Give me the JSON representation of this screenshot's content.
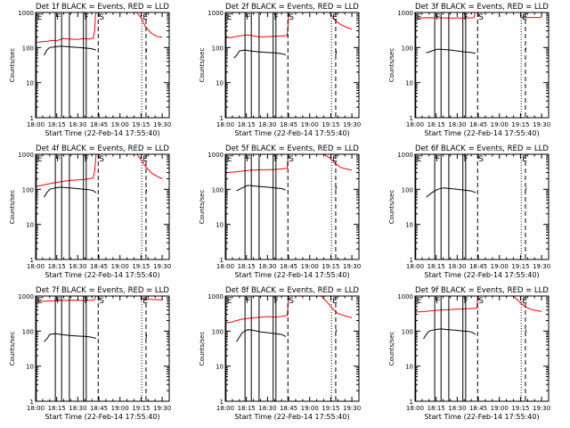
{
  "page": {
    "xaxis_label": "Start Time (22-Feb-14 17:55:40)"
  },
  "chart_data": {
    "type": "line",
    "grid": false,
    "y_scale": "log",
    "ylim": [
      1,
      1000
    ],
    "ylabel": "Counts/sec",
    "y_ticks": [
      {
        "value": 1,
        "label": "1"
      },
      {
        "value": 10,
        "label": "10"
      },
      {
        "value": 100,
        "label": "100"
      },
      {
        "value": 1000,
        "label": "1000"
      }
    ],
    "x_domain_minutes": [
      0,
      95
    ],
    "x_ticks": [
      {
        "minute": 0,
        "label": "18:00"
      },
      {
        "minute": 15,
        "label": "18:15"
      },
      {
        "minute": 30,
        "label": "18:30"
      },
      {
        "minute": 45,
        "label": "18:45"
      },
      {
        "minute": 60,
        "label": "19:00"
      },
      {
        "minute": 75,
        "label": "19:15"
      },
      {
        "minute": 90,
        "label": "19:30"
      }
    ],
    "series_names": [
      "Events",
      "LLD"
    ],
    "series_colors": {
      "Events": "#000000",
      "LLD": "#ff0000"
    },
    "markers": [
      {
        "minute": 0.5,
        "label": "E",
        "style": "solid"
      },
      {
        "minute": 14,
        "label": "F",
        "style": "solid"
      },
      {
        "minute": 18.5,
        "label": "",
        "style": "solid"
      },
      {
        "minute": 24,
        "label": "",
        "style": "solid"
      },
      {
        "minute": 34,
        "label": "F",
        "style": "solid"
      },
      {
        "minute": 36,
        "label": "",
        "style": "solid"
      },
      {
        "minute": 44.5,
        "label": "S",
        "style": "dashed"
      },
      {
        "minute": 75.5,
        "label": "E",
        "style": "dotted"
      },
      {
        "minute": 78.5,
        "label": "",
        "style": "dashed"
      }
    ],
    "panels": [
      {
        "title": "Det 1f BLACK = Events, RED = LLD",
        "events": [
          [
            6,
            60
          ],
          [
            8,
            85
          ],
          [
            10,
            100
          ],
          [
            14,
            105
          ],
          [
            18,
            110
          ],
          [
            24,
            105
          ],
          [
            30,
            100
          ],
          [
            34,
            98
          ],
          [
            38,
            95
          ],
          [
            40,
            92
          ],
          [
            43,
            85
          ]
        ],
        "events_tail": [
          [
            78.5,
            70
          ],
          [
            79,
            90
          ]
        ],
        "lld": [
          [
            0,
            140
          ],
          [
            3,
            145
          ],
          [
            8,
            150
          ],
          [
            12,
            160
          ],
          [
            15,
            155
          ],
          [
            19,
            180
          ],
          [
            24,
            175
          ],
          [
            30,
            170
          ],
          [
            34,
            180
          ],
          [
            38,
            175
          ],
          [
            41,
            185
          ],
          [
            42,
            300
          ],
          [
            42.5,
            800
          ],
          [
            43,
            1000
          ]
        ],
        "lld_tail": [
          [
            72,
            1000
          ],
          [
            75,
            700
          ],
          [
            78,
            400
          ],
          [
            82,
            260
          ],
          [
            86,
            210
          ],
          [
            90,
            195
          ]
        ]
      },
      {
        "title": "Det 2f BLACK = Events, RED = LLD",
        "events": [
          [
            6,
            50
          ],
          [
            8,
            60
          ],
          [
            10,
            80
          ],
          [
            14,
            85
          ],
          [
            18,
            80
          ],
          [
            24,
            75
          ],
          [
            30,
            72
          ],
          [
            36,
            70
          ],
          [
            40,
            67
          ],
          [
            43,
            62
          ]
        ],
        "events_tail": [
          [
            78.5,
            60
          ],
          [
            79,
            80
          ]
        ],
        "lld": [
          [
            0,
            200
          ],
          [
            4,
            190
          ],
          [
            8,
            210
          ],
          [
            12,
            220
          ],
          [
            16,
            230
          ],
          [
            20,
            215
          ],
          [
            25,
            200
          ],
          [
            30,
            205
          ],
          [
            35,
            210
          ],
          [
            40,
            215
          ],
          [
            44,
            220
          ],
          [
            44.8,
            600
          ],
          [
            45.2,
            1000
          ]
        ],
        "lld_tail": [
          [
            74,
            1000
          ],
          [
            78,
            600
          ],
          [
            82,
            450
          ],
          [
            86,
            380
          ],
          [
            90,
            330
          ]
        ]
      },
      {
        "title": "Det 3f BLACK = Events, RED = LLD",
        "events": [
          [
            8,
            70
          ],
          [
            12,
            80
          ],
          [
            16,
            90
          ],
          [
            20,
            88
          ],
          [
            25,
            85
          ],
          [
            30,
            80
          ],
          [
            35,
            75
          ],
          [
            40,
            72
          ],
          [
            43,
            68
          ]
        ],
        "events_tail": [
          [
            78.5,
            80
          ],
          [
            79,
            100
          ]
        ],
        "lld": [
          [
            0,
            700
          ],
          [
            10,
            710
          ],
          [
            20,
            700
          ],
          [
            30,
            690
          ],
          [
            38,
            700
          ],
          [
            42,
            710
          ],
          [
            42.5,
            1000
          ],
          [
            43,
            1000
          ]
        ],
        "lld_tail": [
          [
            75,
            1000
          ],
          [
            75.5,
            720
          ],
          [
            80,
            720
          ],
          [
            90,
            720
          ]
        ]
      },
      {
        "title": "Det 4f BLACK = Events, RED = LLD",
        "events": [
          [
            6,
            60
          ],
          [
            8,
            80
          ],
          [
            10,
            100
          ],
          [
            14,
            110
          ],
          [
            18,
            115
          ],
          [
            24,
            110
          ],
          [
            30,
            105
          ],
          [
            34,
            100
          ],
          [
            38,
            98
          ],
          [
            41,
            92
          ],
          [
            43,
            80
          ]
        ],
        "events_tail": [
          [
            78.5,
            80
          ],
          [
            79,
            100
          ]
        ],
        "lld": [
          [
            0,
            120
          ],
          [
            4,
            130
          ],
          [
            8,
            140
          ],
          [
            12,
            150
          ],
          [
            16,
            160
          ],
          [
            20,
            170
          ],
          [
            25,
            180
          ],
          [
            30,
            185
          ],
          [
            34,
            190
          ],
          [
            38,
            200
          ],
          [
            41,
            210
          ],
          [
            42,
            350
          ],
          [
            43,
            1000
          ]
        ],
        "lld_tail": [
          [
            72,
            1000
          ],
          [
            75,
            700
          ],
          [
            78,
            450
          ],
          [
            82,
            300
          ],
          [
            86,
            240
          ],
          [
            90,
            200
          ]
        ]
      },
      {
        "title": "Det 5f BLACK = Events, RED = LLD",
        "events": [
          [
            8,
            90
          ],
          [
            12,
            110
          ],
          [
            16,
            130
          ],
          [
            20,
            125
          ],
          [
            25,
            120
          ],
          [
            30,
            115
          ],
          [
            35,
            110
          ],
          [
            40,
            105
          ],
          [
            43,
            95
          ]
        ],
        "events_tail": [
          [
            78.5,
            100
          ],
          [
            79,
            120
          ]
        ],
        "lld": [
          [
            0,
            300
          ],
          [
            6,
            310
          ],
          [
            12,
            330
          ],
          [
            18,
            350
          ],
          [
            24,
            360
          ],
          [
            30,
            365
          ],
          [
            36,
            370
          ],
          [
            40,
            380
          ],
          [
            44,
            400
          ],
          [
            44.5,
            900
          ],
          [
            45,
            1000
          ]
        ],
        "lld_tail": [
          [
            70,
            1000
          ],
          [
            74,
            800
          ],
          [
            78,
            550
          ],
          [
            82,
            420
          ],
          [
            86,
            380
          ],
          [
            90,
            350
          ]
        ]
      },
      {
        "title": "Det 6f BLACK = Events, RED = LLD",
        "events": [
          [
            8,
            60
          ],
          [
            12,
            80
          ],
          [
            16,
            100
          ],
          [
            20,
            110
          ],
          [
            25,
            105
          ],
          [
            30,
            100
          ],
          [
            35,
            95
          ],
          [
            40,
            90
          ],
          [
            43,
            80
          ]
        ],
        "events_tail": [
          [
            78.5,
            90
          ],
          [
            79,
            110
          ]
        ],
        "lld": [
          [
            0,
            1000
          ],
          [
            42,
            1000
          ],
          [
            43,
            1000
          ]
        ],
        "lld_tail": [
          [
            75,
            1000
          ],
          [
            90,
            1000
          ]
        ]
      },
      {
        "title": "Det 7f BLACK = Events, RED = LLD",
        "events": [
          [
            6,
            50
          ],
          [
            8,
            60
          ],
          [
            10,
            80
          ],
          [
            14,
            85
          ],
          [
            18,
            80
          ],
          [
            24,
            75
          ],
          [
            30,
            72
          ],
          [
            36,
            70
          ],
          [
            40,
            67
          ],
          [
            43,
            62
          ]
        ],
        "events_tail": [
          [
            78.5,
            60
          ],
          [
            79,
            80
          ]
        ],
        "lld": [
          [
            0,
            700
          ],
          [
            8,
            720
          ],
          [
            16,
            740
          ],
          [
            24,
            760
          ],
          [
            32,
            750
          ],
          [
            40,
            760
          ],
          [
            42,
            800
          ],
          [
            43,
            1000
          ]
        ],
        "lld_tail": [
          [
            75,
            1000
          ],
          [
            76,
            820
          ],
          [
            82,
            800
          ],
          [
            90,
            780
          ]
        ]
      },
      {
        "title": "Det 8f BLACK = Events, RED = LLD",
        "events": [
          [
            8,
            50
          ],
          [
            12,
            90
          ],
          [
            16,
            110
          ],
          [
            20,
            105
          ],
          [
            25,
            95
          ],
          [
            30,
            90
          ],
          [
            35,
            85
          ],
          [
            40,
            80
          ],
          [
            43,
            70
          ]
        ],
        "events_tail": [
          [
            78.5,
            90
          ],
          [
            79,
            110
          ]
        ],
        "lld": [
          [
            0,
            170
          ],
          [
            4,
            180
          ],
          [
            8,
            200
          ],
          [
            12,
            220
          ],
          [
            16,
            230
          ],
          [
            20,
            240
          ],
          [
            25,
            250
          ],
          [
            30,
            260
          ],
          [
            35,
            250
          ],
          [
            40,
            265
          ],
          [
            44,
            280
          ],
          [
            45,
            1000
          ]
        ],
        "lld_tail": [
          [
            68,
            1000
          ],
          [
            72,
            700
          ],
          [
            76,
            450
          ],
          [
            80,
            320
          ],
          [
            84,
            280
          ],
          [
            90,
            240
          ]
        ]
      },
      {
        "title": "Det 9f BLACK = Events, RED = LLD",
        "events": [
          [
            6,
            60
          ],
          [
            8,
            80
          ],
          [
            10,
            100
          ],
          [
            14,
            110
          ],
          [
            18,
            115
          ],
          [
            24,
            110
          ],
          [
            30,
            105
          ],
          [
            34,
            100
          ],
          [
            38,
            98
          ],
          [
            41,
            92
          ],
          [
            43,
            80
          ]
        ],
        "events_tail": [
          [
            78.5,
            90
          ],
          [
            79,
            110
          ]
        ],
        "lld": [
          [
            0,
            350
          ],
          [
            6,
            360
          ],
          [
            12,
            380
          ],
          [
            18,
            400
          ],
          [
            24,
            410
          ],
          [
            30,
            420
          ],
          [
            36,
            430
          ],
          [
            40,
            440
          ],
          [
            44,
            450
          ],
          [
            44.5,
            900
          ],
          [
            45,
            1000
          ]
        ],
        "lld_tail": [
          [
            70,
            1000
          ],
          [
            74,
            700
          ],
          [
            78,
            500
          ],
          [
            82,
            420
          ],
          [
            86,
            390
          ],
          [
            90,
            360
          ]
        ]
      }
    ]
  }
}
